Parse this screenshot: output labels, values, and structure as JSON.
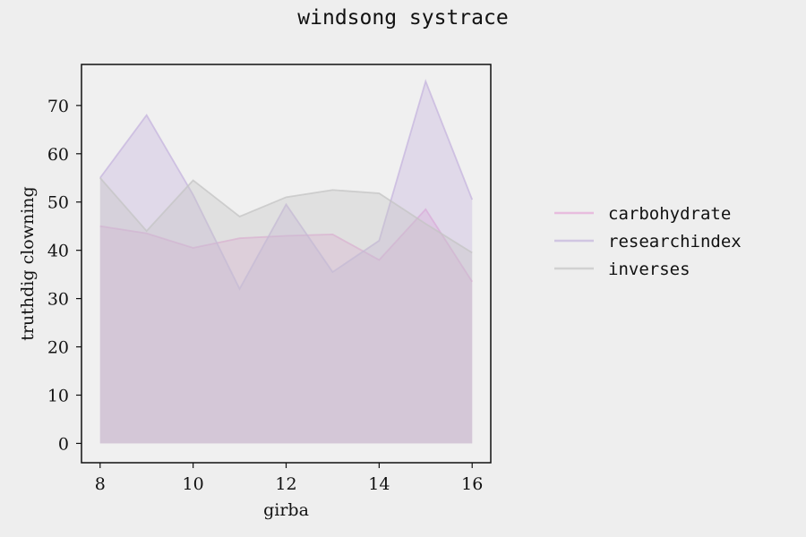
{
  "chart_data": {
    "type": "area",
    "title": "windsong systrace",
    "xlabel": "girba",
    "ylabel": "truthdig clowning",
    "x": [
      8,
      9,
      10,
      11,
      12,
      13,
      14,
      15,
      16
    ],
    "xlim": [
      7.6,
      16.4
    ],
    "ylim": [
      -4,
      78.5
    ],
    "xticks": [
      8,
      10,
      12,
      14,
      16
    ],
    "yticks": [
      0,
      10,
      20,
      30,
      40,
      50,
      60,
      70
    ],
    "grid": false,
    "legend_position": "right",
    "series": [
      {
        "name": "carbohydrate",
        "color": "#e6a8d7",
        "values": [
          45,
          43.5,
          40.5,
          42.5,
          43,
          43.3,
          38,
          48.5,
          33.5
        ]
      },
      {
        "name": "researchindex",
        "color": "#c5b4dd",
        "values": [
          55,
          68,
          51.5,
          32,
          49.5,
          35.5,
          42,
          75,
          50.5
        ]
      },
      {
        "name": "inverses",
        "color": "#c4c4c4",
        "values": [
          55,
          44,
          54.5,
          47,
          51,
          52.5,
          51.8,
          45.5,
          39.5
        ]
      }
    ]
  }
}
